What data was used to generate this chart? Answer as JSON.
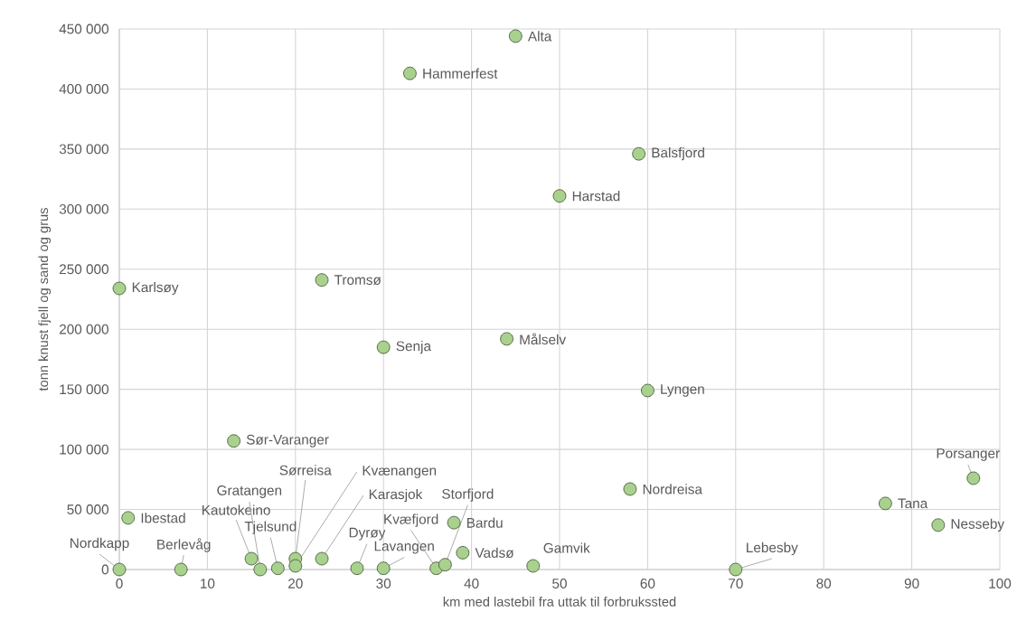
{
  "chart_data": {
    "type": "scatter",
    "xlabel": "km med lastebil fra uttak til forbrukssted",
    "ylabel": "tonn knust fjell og sand og grus",
    "x": [
      45,
      33,
      59,
      50,
      0,
      23,
      30,
      44,
      60,
      13,
      97,
      58,
      87,
      93,
      1,
      38,
      39,
      0,
      7,
      15,
      16,
      18,
      20,
      20,
      23,
      27,
      30,
      36,
      37,
      47,
      70
    ],
    "values": [
      444000,
      413000,
      346000,
      311000,
      234000,
      241000,
      185000,
      192000,
      149000,
      107000,
      76000,
      67000,
      55000,
      37000,
      43000,
      39000,
      14000,
      0,
      0,
      9000,
      0,
      1000,
      9000,
      3000,
      9000,
      1000,
      1000,
      1000,
      4000,
      3000,
      0
    ],
    "color": "#a9d18e",
    "marker": "circle",
    "grid": true,
    "xlim": [
      0,
      100
    ],
    "xticks": [
      0,
      10,
      20,
      30,
      40,
      50,
      60,
      70,
      80,
      90,
      100
    ],
    "ylim": [
      0,
      450000
    ],
    "yticks": [
      {
        "value": 0,
        "label": "0"
      },
      {
        "value": 50000,
        "label": "50 000"
      },
      {
        "value": 100000,
        "label": "100 000"
      },
      {
        "value": 150000,
        "label": "150 000"
      },
      {
        "value": 200000,
        "label": "200 000"
      },
      {
        "value": 250000,
        "label": "250 000"
      },
      {
        "value": 300000,
        "label": "300 000"
      },
      {
        "value": 350000,
        "label": "350 000"
      },
      {
        "value": 400000,
        "label": "400 000"
      },
      {
        "value": 450000,
        "label": "450 000"
      }
    ],
    "annotations": [
      {
        "text": "Alta",
        "x": 45,
        "y": 444000
      },
      {
        "text": "Hammerfest",
        "x": 33,
        "y": 413000
      },
      {
        "text": "Balsfjord",
        "x": 59,
        "y": 346000
      },
      {
        "text": "Harstad",
        "x": 50,
        "y": 311000
      },
      {
        "text": "Karlsøy",
        "x": 0,
        "y": 234000
      },
      {
        "text": "Tromsø",
        "x": 23,
        "y": 241000
      },
      {
        "text": "Senja",
        "x": 30,
        "y": 185000
      },
      {
        "text": "Målselv",
        "x": 44,
        "y": 192000
      },
      {
        "text": "Lyngen",
        "x": 60,
        "y": 149000
      },
      {
        "text": "Sør-Varanger",
        "x": 13,
        "y": 107000
      },
      {
        "text": "Porsanger",
        "x": 97,
        "y": 76000
      },
      {
        "text": "Nordreisa",
        "x": 58,
        "y": 67000
      },
      {
        "text": "Tana",
        "x": 87,
        "y": 55000
      },
      {
        "text": "Nesseby",
        "x": 93,
        "y": 37000
      },
      {
        "text": "Ibestad",
        "x": 1,
        "y": 43000
      },
      {
        "text": "Bardu",
        "x": 38,
        "y": 39000
      },
      {
        "text": "Vadsø",
        "x": 39,
        "y": 14000
      },
      {
        "text": "Nordkapp",
        "x": 0,
        "y": 0
      },
      {
        "text": "Berlevåg",
        "x": 7,
        "y": 0
      },
      {
        "text": "Kautokeino",
        "x": 15,
        "y": 9000
      },
      {
        "text": "Gratangen",
        "x": 16,
        "y": 0
      },
      {
        "text": "Tjelsund",
        "x": 18,
        "y": 1000
      },
      {
        "text": "Sørreisa",
        "x": 20,
        "y": 9000
      },
      {
        "text": "Kvænangen",
        "x": 20,
        "y": 3000
      },
      {
        "text": "Karasjok",
        "x": 23,
        "y": 9000
      },
      {
        "text": "Dyrøy",
        "x": 27,
        "y": 1000
      },
      {
        "text": "Lavangen",
        "x": 30,
        "y": 1000
      },
      {
        "text": "Kvæfjord",
        "x": 36,
        "y": 1000
      },
      {
        "text": "Storfjord",
        "x": 37,
        "y": 4000
      },
      {
        "text": "Gamvik",
        "x": 47,
        "y": 3000
      },
      {
        "text": "Lebesby",
        "x": 70,
        "y": 0
      }
    ]
  }
}
